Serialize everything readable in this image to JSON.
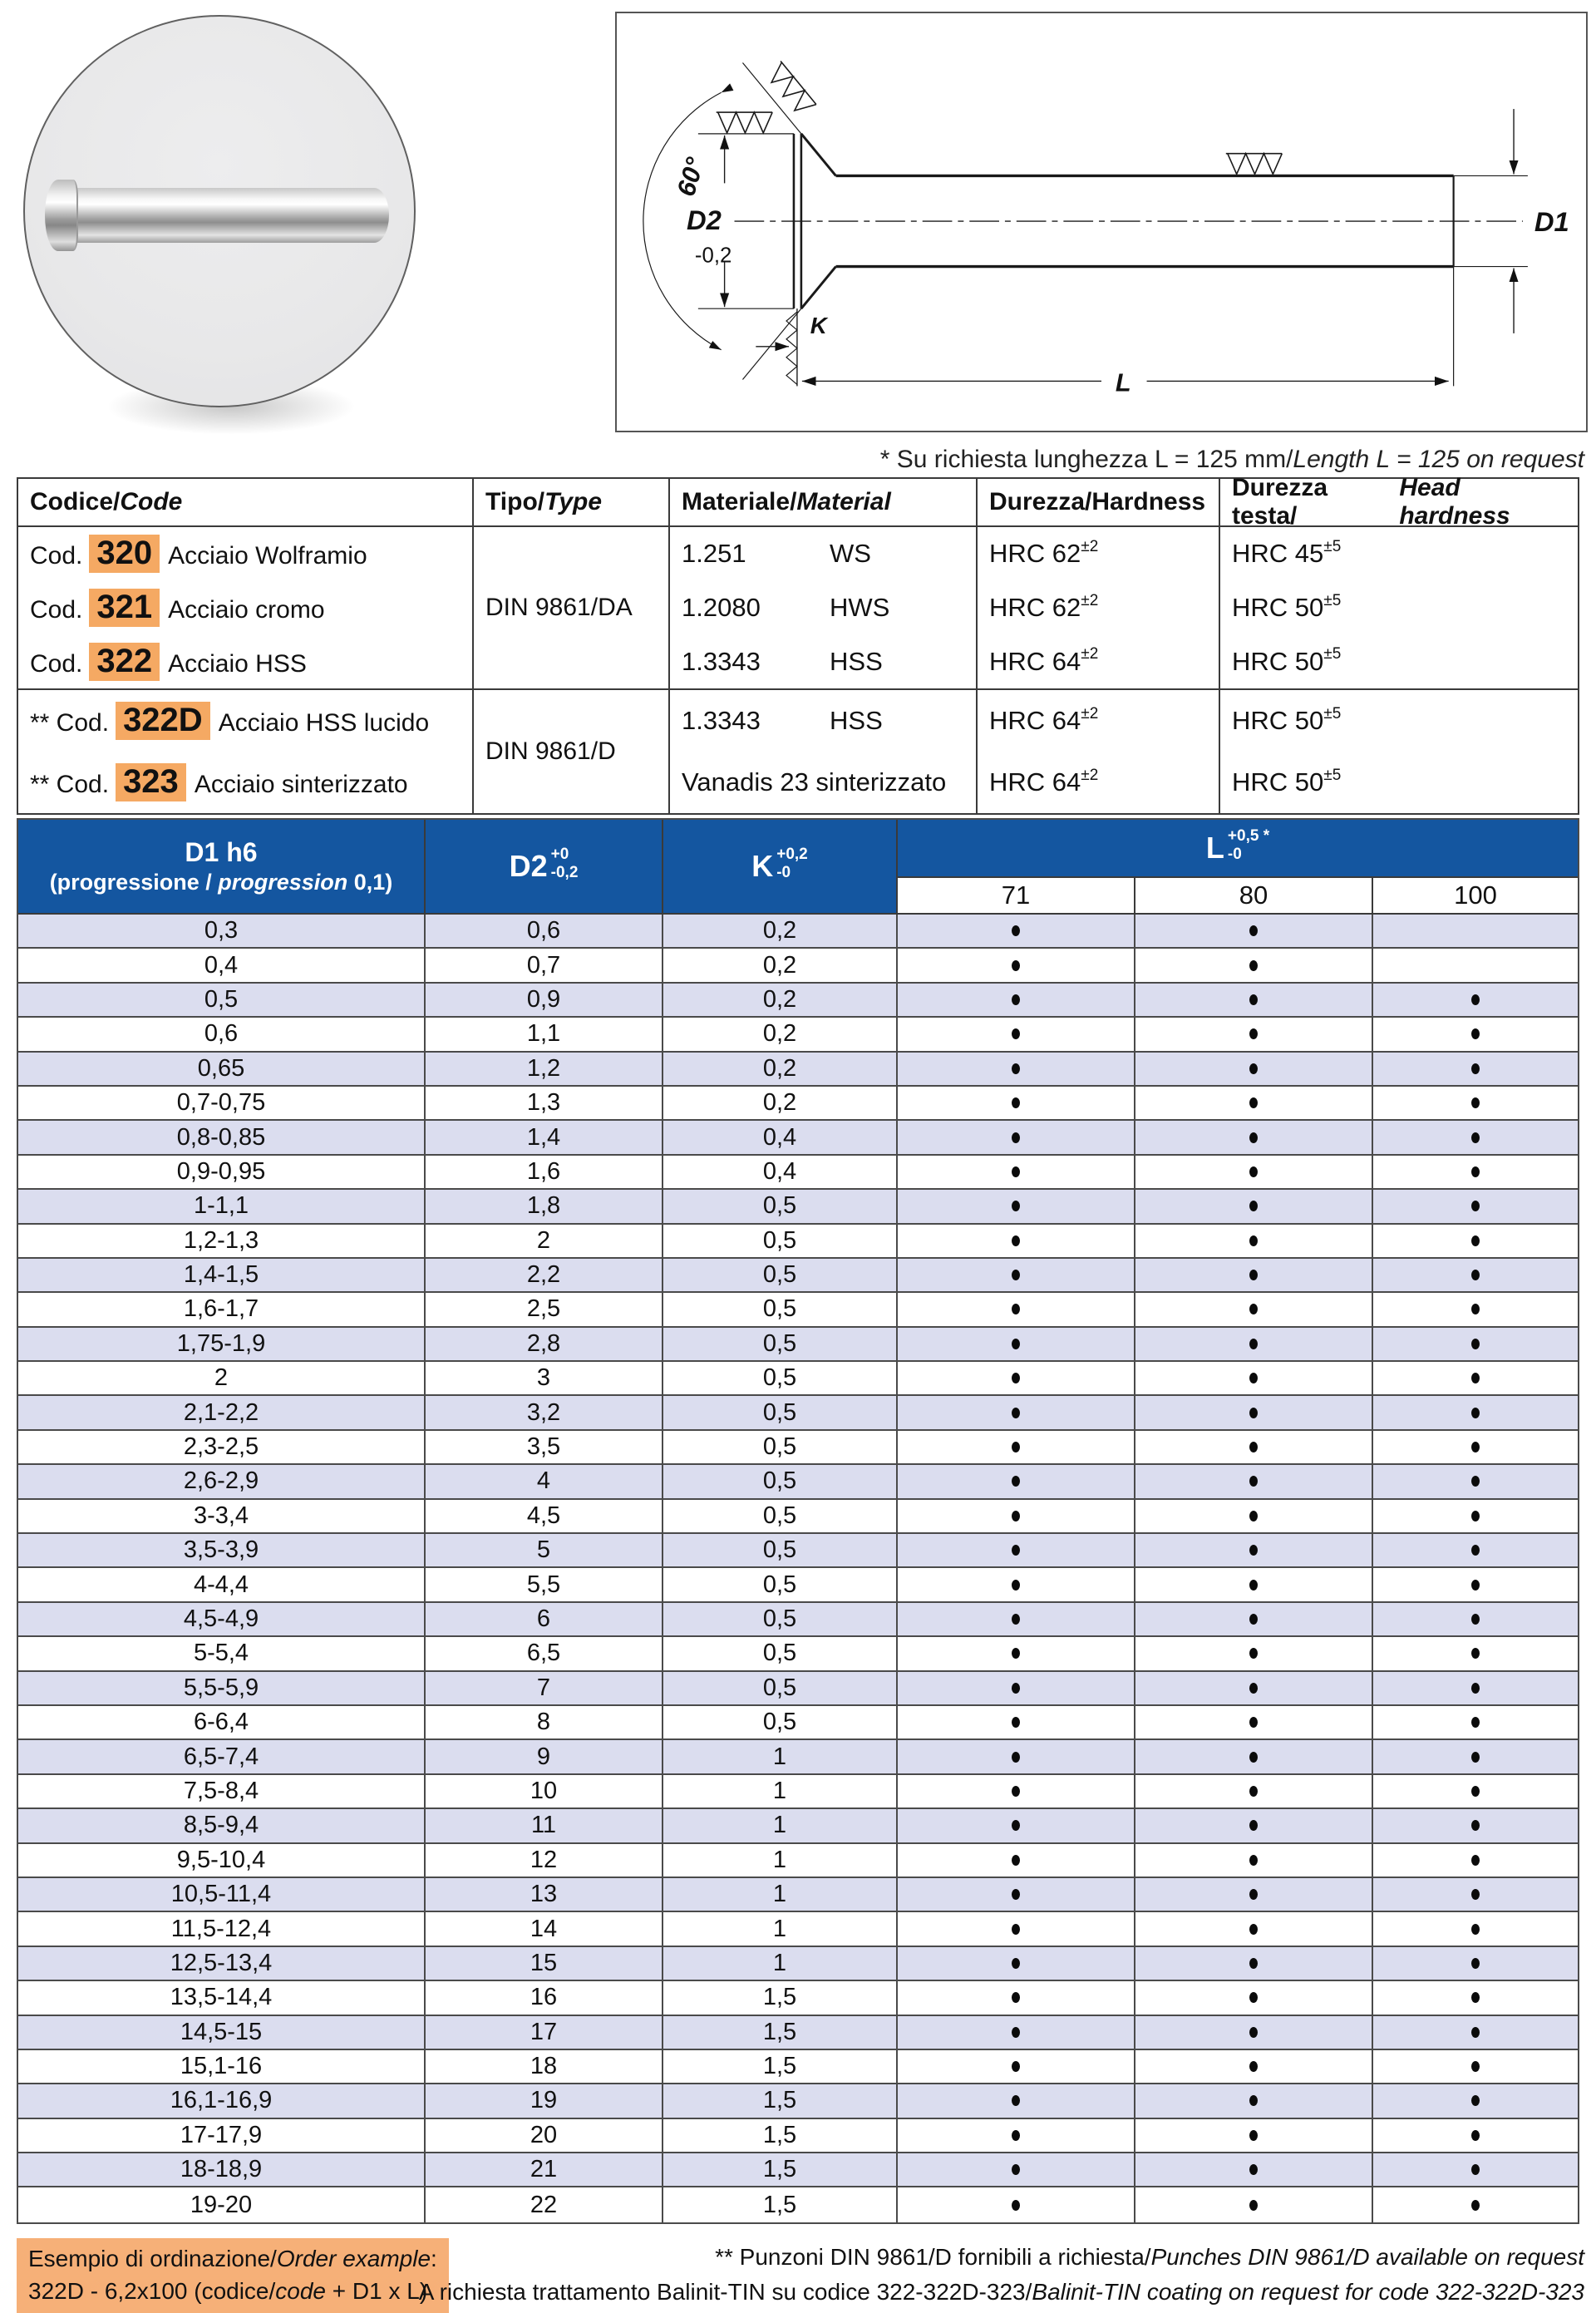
{
  "diagram": {
    "labels": {
      "angle": "60°",
      "d2": "D2",
      "d2_tol": "-0,2",
      "k": "K",
      "l": "L",
      "d1": "D1"
    }
  },
  "note": {
    "normal": "* Su richiesta lunghezza L = 125 mm/",
    "italic": "Length L = 125 on request"
  },
  "codes_table": {
    "headers": {
      "codice_a": "Codice/",
      "codice_b": "Code",
      "tipo_a": "Tipo/",
      "tipo_b": "Type",
      "materiale_a": "Materiale/",
      "materiale_b": "Material",
      "durezza_a": "Durezza/",
      "durezza_b": "Hardness",
      "testa_a": "Durezza testa/",
      "testa_b": "Head hardness"
    },
    "groups": [
      {
        "rows": [
          {
            "prefix": "Cod.",
            "code": "320",
            "desc": "Acciaio Wolframio"
          },
          {
            "prefix": "Cod.",
            "code": "321",
            "desc": "Acciaio cromo"
          },
          {
            "prefix": "Cod.",
            "code": "322",
            "desc": "Acciaio HSS"
          }
        ],
        "tipo": "DIN 9861/DA",
        "materials": [
          {
            "num": "1.251",
            "name": "WS"
          },
          {
            "num": "1.2080",
            "name": "HWS"
          },
          {
            "num": "1.3343",
            "name": "HSS"
          }
        ],
        "hardness": [
          {
            "t": "HRC 62",
            "sup": "±2"
          },
          {
            "t": "HRC 62",
            "sup": "±2"
          },
          {
            "t": "HRC 64",
            "sup": "±2"
          }
        ],
        "head_hardness": [
          {
            "t": "HRC 45",
            "sup": "±5"
          },
          {
            "t": "HRC 50",
            "sup": "±5"
          },
          {
            "t": "HRC 50",
            "sup": "±5"
          }
        ]
      },
      {
        "rows": [
          {
            "prefix": "** Cod.",
            "code": "322D",
            "desc": "Acciaio HSS lucido"
          },
          {
            "prefix": "** Cod.",
            "code": "323",
            "desc": "Acciaio sinterizzato"
          }
        ],
        "tipo": "DIN 9861/D",
        "materials": [
          {
            "num": "1.3343",
            "name": "HSS"
          },
          {
            "num": "Vanadis 23 sinterizzato",
            "name": ""
          }
        ],
        "hardness": [
          {
            "t": "HRC 64",
            "sup": "±2"
          },
          {
            "t": "HRC 64",
            "sup": "±2"
          }
        ],
        "head_hardness": [
          {
            "t": "HRC 50",
            "sup": "±5"
          },
          {
            "t": "HRC 50",
            "sup": "±5"
          }
        ]
      }
    ]
  },
  "dim_table": {
    "header": {
      "d1_line1": "D1 h6",
      "d1_line2_a": "(progressione / ",
      "d1_line2_b": "progression",
      "d1_line2_c": " 0,1)",
      "d2": "D2",
      "d2_sup": "+0",
      "d2_sub": "-0,2",
      "k": "K",
      "k_sup": "+0,2",
      "k_sub": "-0",
      "l": "L",
      "l_sup": "+0,5 *",
      "l_sub": "-0",
      "len_71": "71",
      "len_80": "80",
      "len_100": "100"
    },
    "rows": [
      [
        "0,3",
        "0,6",
        "0,2",
        1,
        1,
        0
      ],
      [
        "0,4",
        "0,7",
        "0,2",
        1,
        1,
        0
      ],
      [
        "0,5",
        "0,9",
        "0,2",
        1,
        1,
        1
      ],
      [
        "0,6",
        "1,1",
        "0,2",
        1,
        1,
        1
      ],
      [
        "0,65",
        "1,2",
        "0,2",
        1,
        1,
        1
      ],
      [
        "0,7-0,75",
        "1,3",
        "0,2",
        1,
        1,
        1
      ],
      [
        "0,8-0,85",
        "1,4",
        "0,4",
        1,
        1,
        1
      ],
      [
        "0,9-0,95",
        "1,6",
        "0,4",
        1,
        1,
        1
      ],
      [
        "1-1,1",
        "1,8",
        "0,5",
        1,
        1,
        1
      ],
      [
        "1,2-1,3",
        "2",
        "0,5",
        1,
        1,
        1
      ],
      [
        "1,4-1,5",
        "2,2",
        "0,5",
        1,
        1,
        1
      ],
      [
        "1,6-1,7",
        "2,5",
        "0,5",
        1,
        1,
        1
      ],
      [
        "1,75-1,9",
        "2,8",
        "0,5",
        1,
        1,
        1
      ],
      [
        "2",
        "3",
        "0,5",
        1,
        1,
        1
      ],
      [
        "2,1-2,2",
        "3,2",
        "0,5",
        1,
        1,
        1
      ],
      [
        "2,3-2,5",
        "3,5",
        "0,5",
        1,
        1,
        1
      ],
      [
        "2,6-2,9",
        "4",
        "0,5",
        1,
        1,
        1
      ],
      [
        "3-3,4",
        "4,5",
        "0,5",
        1,
        1,
        1
      ],
      [
        "3,5-3,9",
        "5",
        "0,5",
        1,
        1,
        1
      ],
      [
        "4-4,4",
        "5,5",
        "0,5",
        1,
        1,
        1
      ],
      [
        "4,5-4,9",
        "6",
        "0,5",
        1,
        1,
        1
      ],
      [
        "5-5,4",
        "6,5",
        "0,5",
        1,
        1,
        1
      ],
      [
        "5,5-5,9",
        "7",
        "0,5",
        1,
        1,
        1
      ],
      [
        "6-6,4",
        "8",
        "0,5",
        1,
        1,
        1
      ],
      [
        "6,5-7,4",
        "9",
        "1",
        1,
        1,
        1
      ],
      [
        "7,5-8,4",
        "10",
        "1",
        1,
        1,
        1
      ],
      [
        "8,5-9,4",
        "11",
        "1",
        1,
        1,
        1
      ],
      [
        "9,5-10,4",
        "12",
        "1",
        1,
        1,
        1
      ],
      [
        "10,5-11,4",
        "13",
        "1",
        1,
        1,
        1
      ],
      [
        "11,5-12,4",
        "14",
        "1",
        1,
        1,
        1
      ],
      [
        "12,5-13,4",
        "15",
        "1",
        1,
        1,
        1
      ],
      [
        "13,5-14,4",
        "16",
        "1,5",
        1,
        1,
        1
      ],
      [
        "14,5-15",
        "17",
        "1,5",
        1,
        1,
        1
      ],
      [
        "15,1-16",
        "18",
        "1,5",
        1,
        1,
        1
      ],
      [
        "16,1-16,9",
        "19",
        "1,5",
        1,
        1,
        1
      ],
      [
        "17-17,9",
        "20",
        "1,5",
        1,
        1,
        1
      ],
      [
        "18-18,9",
        "21",
        "1,5",
        1,
        1,
        1
      ],
      [
        "19-20",
        "22",
        "1,5",
        1,
        1,
        1
      ]
    ]
  },
  "footer": {
    "example_line1_a": "Esempio di ordinazione/",
    "example_line1_b": "Order example",
    "example_line1_c": ":",
    "example_line2_a": "322D - 6,2x100 (codice/",
    "example_line2_b": "code",
    "example_line2_c": " + D1 x L)",
    "note1_a": "** Punzoni DIN 9861/D fornibili a richiesta/",
    "note1_b": "Punches DIN 9861/D available on request",
    "note2_a": "A richiesta trattamento Balinit-TIN su codice 322-322D-323/",
    "note2_b": "Balinit-TIN coating on request for code 322-322D-323"
  },
  "colors": {
    "header_blue": "#1456A0",
    "row_alt": "#DBDDEF",
    "highlight_orange": "#F5A963"
  }
}
